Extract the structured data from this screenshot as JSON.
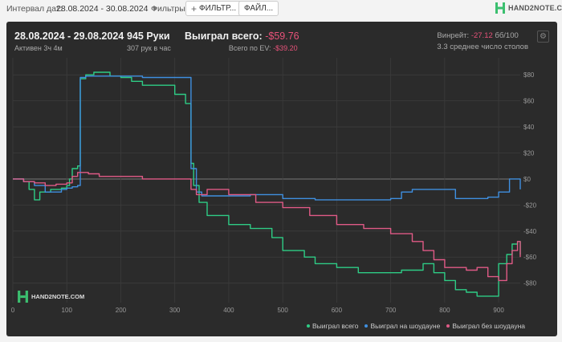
{
  "toolbar": {
    "interval_label": "Интервал дат:",
    "interval_value": "28.08.2024 - 30.08.2024",
    "filters_label": "Фильтры:",
    "filter_button": "ФИЛЬТР...",
    "file_button": "ФАЙЛ...",
    "brand": "HAND2NOTE.COM"
  },
  "summary": {
    "date_range": "28.08.2024 - 29.08.2024",
    "active": "Активен 3ч 4м",
    "hands": "945 Руки",
    "hands_rate": "307 рук в час",
    "won_label": "Выиграл всего:",
    "won_value": "-$59.76",
    "ev_label": "Всего по EV:",
    "ev_value": "-$39.20",
    "winrate_label": "Винрейт:",
    "winrate_value": "-27.12",
    "winrate_unit": "бб/100",
    "players": "3.3 среднее число столов"
  },
  "watermark": "HAND2NOTE.COM",
  "colors": {
    "green": "#2ecc85",
    "blue": "#3f8fe0",
    "pink": "#e05a86"
  },
  "chart_data": {
    "type": "line",
    "xlim": [
      0,
      940
    ],
    "ylim": [
      -95,
      90
    ],
    "x_ticks": [
      0,
      100,
      200,
      300,
      400,
      500,
      600,
      700,
      800,
      900
    ],
    "y_ticks": [
      80,
      60,
      40,
      20,
      0,
      -20,
      -40,
      -60,
      -80
    ],
    "y_tick_labels": [
      "$80",
      "$60",
      "$40",
      "$20",
      "$0",
      "-$20",
      "-$40",
      "-$60",
      "-$80"
    ],
    "grid": true,
    "legend": "bottom-right",
    "series": [
      {
        "name": "Выиграл всего",
        "color": "#2ecc85",
        "x": [
          0,
          20,
          30,
          40,
          50,
          70,
          90,
          100,
          105,
          110,
          120,
          125,
          135,
          150,
          180,
          200,
          220,
          240,
          300,
          320,
          330,
          335,
          345,
          360,
          400,
          440,
          480,
          500,
          540,
          560,
          600,
          640,
          680,
          720,
          760,
          780,
          800,
          820,
          840,
          860,
          880,
          900,
          915,
          925,
          935,
          940
        ],
        "y": [
          0,
          -2,
          -8,
          -16,
          -10,
          -8,
          -7,
          -5,
          0,
          8,
          10,
          77,
          80,
          82,
          79,
          78,
          75,
          72,
          65,
          58,
          12,
          -5,
          -18,
          -28,
          -35,
          -38,
          -45,
          -55,
          -60,
          -65,
          -68,
          -72,
          -72,
          -70,
          -65,
          -72,
          -78,
          -85,
          -87,
          -90,
          -90,
          -65,
          -58,
          -50,
          -48,
          -58
        ]
      },
      {
        "name": "Выиграл на шоудауне",
        "color": "#3f8fe0",
        "x": [
          0,
          20,
          40,
          60,
          90,
          100,
          110,
          120,
          125,
          135,
          180,
          240,
          320,
          330,
          340,
          350,
          400,
          440,
          500,
          560,
          600,
          700,
          720,
          740,
          760,
          800,
          820,
          840,
          880,
          900,
          920,
          940
        ],
        "y": [
          0,
          -2,
          -5,
          -10,
          -8,
          -7,
          -6,
          -5,
          78,
          79,
          79,
          78,
          78,
          8,
          -10,
          -13,
          -13,
          -12,
          -15,
          -16,
          -16,
          -15,
          -10,
          -8,
          -8,
          -8,
          -15,
          -15,
          -14,
          -10,
          0,
          -8
        ]
      },
      {
        "name": "Выиграл без шоудауна",
        "color": "#e05a86",
        "x": [
          0,
          20,
          40,
          60,
          80,
          100,
          110,
          120,
          140,
          160,
          200,
          240,
          300,
          330,
          340,
          360,
          400,
          450,
          500,
          550,
          600,
          650,
          700,
          740,
          760,
          780,
          800,
          840,
          860,
          880,
          900,
          915,
          925,
          935,
          940
        ],
        "y": [
          0,
          -2,
          -3,
          -5,
          -4,
          -3,
          2,
          5,
          4,
          2,
          2,
          0,
          0,
          -8,
          -12,
          -8,
          -12,
          -18,
          -22,
          -28,
          -35,
          -38,
          -42,
          -48,
          -55,
          -62,
          -68,
          -70,
          -68,
          -75,
          -78,
          -65,
          -55,
          -48,
          -60
        ]
      }
    ]
  }
}
